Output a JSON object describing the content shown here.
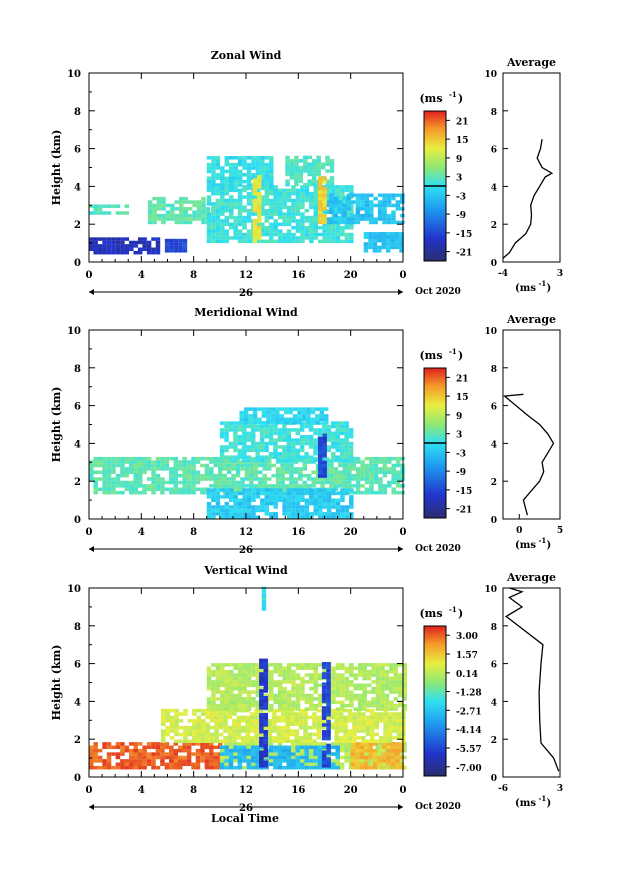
{
  "xlabel": "Local Time",
  "chart_data": [
    {
      "type": "heatmap",
      "title": "Zonal Wind",
      "ylabel": "Height (km)",
      "ylim": [
        0,
        10
      ],
      "yticks": [
        "0",
        "2",
        "4",
        "6",
        "8",
        "10"
      ],
      "xlim": [
        0,
        24
      ],
      "xticks": [
        "0",
        "4",
        "8",
        "12",
        "16",
        "20",
        "0"
      ],
      "day_label": "26",
      "date_label": "Oct 2020",
      "colorbar": {
        "unit_label": "(ms",
        "unit_exp": "-1",
        "ticks": [
          "21",
          "15",
          "9",
          "3",
          "-3",
          "-9",
          "-15",
          "-21"
        ],
        "range": [
          -24,
          24
        ],
        "contour_at": 0
      },
      "regions": [
        {
          "x0": 0.0,
          "x1": 5.2,
          "y0": 0.4,
          "y1": 1.2,
          "value": -18
        },
        {
          "x0": 5.8,
          "x1": 7.2,
          "y0": 0.5,
          "y1": 1.1,
          "value": -15
        },
        {
          "x0": 0.0,
          "x1": 3.0,
          "y0": 2.5,
          "y1": 3.0,
          "value": 2
        },
        {
          "x0": 4.5,
          "x1": 9.2,
          "y0": 2.0,
          "y1": 3.3,
          "value": 3
        },
        {
          "x0": 9.0,
          "x1": 20.0,
          "y0": 1.0,
          "y1": 4.0,
          "value": 1
        },
        {
          "x0": 9.0,
          "x1": 14.0,
          "y0": 3.8,
          "y1": 5.5,
          "value": 0
        },
        {
          "x0": 15.0,
          "x1": 18.5,
          "y0": 4.0,
          "y1": 5.5,
          "value": 2
        },
        {
          "x0": 18.0,
          "x1": 24.0,
          "y0": 2.0,
          "y1": 3.6,
          "value": -3
        },
        {
          "x0": 21.0,
          "x1": 24.0,
          "y0": 0.5,
          "y1": 1.5,
          "value": -3
        },
        {
          "x0": 12.5,
          "x1": 13.0,
          "y0": 1.0,
          "y1": 4.5,
          "value": 12
        },
        {
          "x0": 17.5,
          "x1": 18.0,
          "y0": 2.0,
          "y1": 4.5,
          "value": 14
        }
      ],
      "profile": {
        "title": "Average",
        "xlim": [
          -4,
          3
        ],
        "xticks": [
          "-4",
          "3"
        ],
        "xlabel": "(ms",
        "xlabel_exp": "-1",
        "points": [
          [
            -4.0,
            0.2
          ],
          [
            -3.2,
            0.5
          ],
          [
            -2.5,
            1.0
          ],
          [
            -1.2,
            1.5
          ],
          [
            -0.6,
            2.0
          ],
          [
            -0.5,
            2.5
          ],
          [
            -0.6,
            3.0
          ],
          [
            -0.2,
            3.5
          ],
          [
            0.5,
            4.0
          ],
          [
            1.2,
            4.5
          ],
          [
            2.0,
            4.7
          ],
          [
            0.8,
            5.0
          ],
          [
            0.2,
            5.5
          ],
          [
            0.6,
            6.0
          ],
          [
            0.8,
            6.5
          ]
        ]
      }
    },
    {
      "type": "heatmap",
      "title": "Meridional Wind",
      "ylabel": "Height (km)",
      "ylim": [
        0,
        10
      ],
      "yticks": [
        "0",
        "2",
        "4",
        "6",
        "8",
        "10"
      ],
      "xlim": [
        0,
        24
      ],
      "xticks": [
        "0",
        "4",
        "8",
        "12",
        "16",
        "20",
        "0"
      ],
      "day_label": "26",
      "date_label": "Oct 2020",
      "colorbar": {
        "unit_label": "(ms",
        "unit_exp": "-1",
        "ticks": [
          "21",
          "15",
          "9",
          "3",
          "-3",
          "-9",
          "-15",
          "-21"
        ],
        "range": [
          -24,
          24
        ],
        "contour_at": 0
      },
      "regions": [
        {
          "x0": 0.0,
          "x1": 24.0,
          "y0": 1.3,
          "y1": 3.2,
          "value": 3
        },
        {
          "x0": 9.0,
          "x1": 20.0,
          "y0": 0.0,
          "y1": 1.5,
          "value": -2
        },
        {
          "x0": 10.0,
          "x1": 20.0,
          "y0": 3.0,
          "y1": 5.0,
          "value": 1
        },
        {
          "x0": 11.5,
          "x1": 18.0,
          "y0": 5.0,
          "y1": 5.8,
          "value": -1
        },
        {
          "x0": 17.5,
          "x1": 18.0,
          "y0": 2.0,
          "y1": 4.5,
          "value": -15
        }
      ],
      "profile": {
        "title": "Average",
        "xlim": [
          -2,
          5
        ],
        "xticks": [
          "0",
          "5"
        ],
        "xlabel": "(ms",
        "xlabel_exp": "-1",
        "points": [
          [
            1.0,
            0.2
          ],
          [
            0.5,
            1.0
          ],
          [
            2.5,
            2.0
          ],
          [
            3.0,
            2.5
          ],
          [
            2.8,
            3.0
          ],
          [
            3.5,
            3.5
          ],
          [
            4.2,
            4.0
          ],
          [
            3.5,
            4.5
          ],
          [
            2.5,
            5.0
          ],
          [
            1.0,
            5.5
          ],
          [
            -1.8,
            6.5
          ],
          [
            0.5,
            6.6
          ]
        ]
      }
    },
    {
      "type": "heatmap",
      "title": "Vertical Wind",
      "ylabel": "Height (km)",
      "ylim": [
        0,
        10
      ],
      "yticks": [
        "0",
        "2",
        "4",
        "6",
        "8",
        "10"
      ],
      "xlim": [
        0,
        24
      ],
      "xticks": [
        "0",
        "4",
        "8",
        "12",
        "16",
        "20",
        "0"
      ],
      "day_label": "26",
      "date_label": "Oct 2020",
      "colorbar": {
        "unit_label": "(ms",
        "unit_exp": "-1",
        "ticks": [
          "3.00",
          "1.57",
          "0.14",
          "-1.28",
          "-2.71",
          "-4.14",
          "-5.57",
          "-7.00"
        ],
        "range": [
          -7.7,
          3.7
        ],
        "contour_at": null
      },
      "regions": [
        {
          "x0": 0.0,
          "x1": 10.0,
          "y0": 0.4,
          "y1": 1.8,
          "value": 3.0
        },
        {
          "x0": 10.0,
          "x1": 24.0,
          "y0": 0.4,
          "y1": 1.8,
          "value": 0.0
        },
        {
          "x0": 20.0,
          "x1": 24.0,
          "y0": 0.4,
          "y1": 1.8,
          "value": 1.8
        },
        {
          "x0": 10.0,
          "x1": 19.0,
          "y0": 0.4,
          "y1": 1.5,
          "value": -3.0
        },
        {
          "x0": 5.5,
          "x1": 24.0,
          "y0": 1.8,
          "y1": 3.5,
          "value": 0.5
        },
        {
          "x0": 9.0,
          "x1": 24.0,
          "y0": 3.5,
          "y1": 6.0,
          "value": 0.0
        },
        {
          "x0": 13.0,
          "x1": 13.5,
          "y0": 0.5,
          "y1": 6.2,
          "value": -6.0
        },
        {
          "x0": 17.8,
          "x1": 18.3,
          "y0": 0.5,
          "y1": 6.0,
          "value": -5.5
        },
        {
          "x0": 13.2,
          "x1": 13.5,
          "y0": 8.8,
          "y1": 10.0,
          "value": -2.0
        }
      ],
      "profile": {
        "title": "Average",
        "xlim": [
          -6,
          3
        ],
        "xticks": [
          "-6",
          "3"
        ],
        "xlabel": "(ms",
        "xlabel_exp": "-1",
        "points": [
          [
            2.8,
            0.3
          ],
          [
            2.0,
            1.0
          ],
          [
            0.0,
            1.8
          ],
          [
            -0.2,
            3.0
          ],
          [
            -0.3,
            4.5
          ],
          [
            0.0,
            6.0
          ],
          [
            0.3,
            7.0
          ],
          [
            -5.5,
            8.5
          ],
          [
            -3.0,
            9.0
          ],
          [
            -5.0,
            9.5
          ],
          [
            -3.0,
            9.8
          ],
          [
            -5.0,
            10.0
          ]
        ]
      }
    }
  ]
}
